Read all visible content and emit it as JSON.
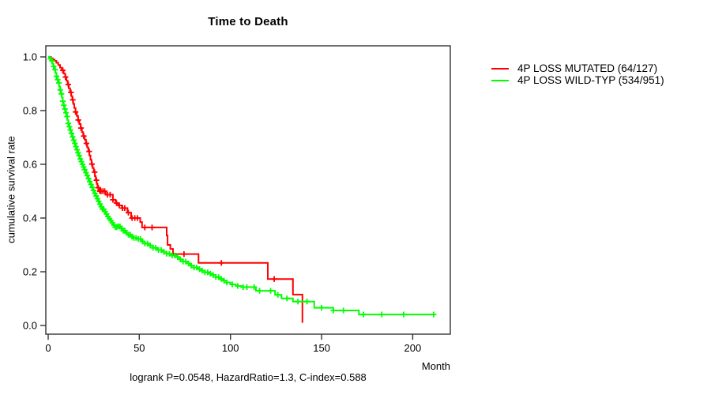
{
  "chart_data": {
    "type": "line",
    "subtype": "kaplan-meier-step-survival",
    "title": "Time to Death",
    "xlabel": "Month",
    "ylabel": "cumulative survival rate",
    "footer": "logrank P=0.0548, HazardRatio=1.3, C-index=0.588",
    "x_ticks": [
      0,
      50,
      100,
      150,
      200
    ],
    "y_tick_labels": [
      "0.0",
      "0.2",
      "0.4",
      "0.6",
      "0.8",
      "1.0"
    ],
    "xlim": [
      0,
      220
    ],
    "ylim": [
      0,
      1.0
    ],
    "grid": false,
    "legend_position": "right-outside",
    "axis_color": "#333333",
    "series": [
      {
        "key": "mutated",
        "name": "4P LOSS MUTATED",
        "label": "4P LOSS MUTATED (64/127)",
        "events": 64,
        "n": 127,
        "color": "#ff0000",
        "steps": [
          [
            0,
            1.0
          ],
          [
            1.5,
            0.995
          ],
          [
            2.5,
            0.99
          ],
          [
            3.5,
            0.985
          ],
          [
            4.5,
            0.978
          ],
          [
            5.5,
            0.97
          ],
          [
            6.5,
            0.96
          ],
          [
            7.5,
            0.95
          ],
          [
            8.5,
            0.938
          ],
          [
            9.3,
            0.925
          ],
          [
            10,
            0.911
          ],
          [
            10.7,
            0.897
          ],
          [
            11.3,
            0.883
          ],
          [
            12,
            0.868
          ],
          [
            12.6,
            0.854
          ],
          [
            13.2,
            0.84
          ],
          [
            13.7,
            0.825
          ],
          [
            14.3,
            0.81
          ],
          [
            15,
            0.795
          ],
          [
            15.7,
            0.78
          ],
          [
            16.4,
            0.765
          ],
          [
            17.1,
            0.75
          ],
          [
            17.8,
            0.735
          ],
          [
            18.5,
            0.72
          ],
          [
            19.2,
            0.705
          ],
          [
            20,
            0.692
          ],
          [
            20.7,
            0.678
          ],
          [
            21.4,
            0.663
          ],
          [
            22,
            0.648
          ],
          [
            22.6,
            0.633
          ],
          [
            23.2,
            0.617
          ],
          [
            23.8,
            0.601
          ],
          [
            24.4,
            0.586
          ],
          [
            25,
            0.571
          ],
          [
            25.6,
            0.556
          ],
          [
            26.1,
            0.541
          ],
          [
            26.6,
            0.527
          ],
          [
            27.1,
            0.513
          ],
          [
            27.6,
            0.5
          ],
          [
            31.5,
            0.487
          ],
          [
            35.5,
            0.468
          ],
          [
            37,
            0.456
          ],
          [
            38.5,
            0.447
          ],
          [
            40.5,
            0.437
          ],
          [
            43.5,
            0.42
          ],
          [
            45.5,
            0.4
          ],
          [
            50.5,
            0.385
          ],
          [
            51.5,
            0.365
          ],
          [
            65,
            0.335
          ],
          [
            65.5,
            0.3
          ],
          [
            67,
            0.285
          ],
          [
            68.5,
            0.266
          ],
          [
            82.5,
            0.233
          ],
          [
            120.5,
            0.173
          ],
          [
            134.3,
            0.115
          ],
          [
            139.5,
            0.01
          ]
        ],
        "censor_times": [
          8,
          9.5,
          11,
          12.5,
          13.5,
          15,
          16.5,
          18,
          19.5,
          21,
          22.5,
          24,
          25.5,
          26.5,
          27.5,
          28.3,
          29,
          30,
          31,
          32.5,
          34,
          35.5,
          37.5,
          39,
          40.8,
          42,
          44,
          46,
          47.5,
          49,
          53,
          57,
          74.5,
          95,
          124
        ]
      },
      {
        "key": "wildtype",
        "name": "4P LOSS WILD-TYP",
        "label": "4P LOSS WILD-TYP (534/951)",
        "events": 534,
        "n": 951,
        "color": "#00ff00",
        "steps": [
          [
            0,
            1.0
          ],
          [
            0.8,
            0.993
          ],
          [
            1.5,
            0.985
          ],
          [
            2.2,
            0.975
          ],
          [
            2.8,
            0.965
          ],
          [
            3.4,
            0.952
          ],
          [
            4,
            0.94
          ],
          [
            4.5,
            0.928
          ],
          [
            5,
            0.915
          ],
          [
            5.5,
            0.903
          ],
          [
            6,
            0.89
          ],
          [
            6.5,
            0.877
          ],
          [
            7,
            0.862
          ],
          [
            7.5,
            0.848
          ],
          [
            8,
            0.835
          ],
          [
            8.5,
            0.82
          ],
          [
            9,
            0.806
          ],
          [
            9.5,
            0.792
          ],
          [
            10,
            0.778
          ],
          [
            10.5,
            0.765
          ],
          [
            11,
            0.752
          ],
          [
            11.6,
            0.74
          ],
          [
            12.2,
            0.728
          ],
          [
            12.8,
            0.715
          ],
          [
            13.4,
            0.702
          ],
          [
            14,
            0.69
          ],
          [
            14.6,
            0.678
          ],
          [
            15.2,
            0.666
          ],
          [
            15.8,
            0.654
          ],
          [
            16.4,
            0.643
          ],
          [
            17,
            0.632
          ],
          [
            17.6,
            0.62
          ],
          [
            18.2,
            0.61
          ],
          [
            18.8,
            0.6
          ],
          [
            19.4,
            0.59
          ],
          [
            20,
            0.58
          ],
          [
            20.7,
            0.569
          ],
          [
            21.4,
            0.558
          ],
          [
            22.1,
            0.547
          ],
          [
            22.8,
            0.536
          ],
          [
            23.5,
            0.525
          ],
          [
            24.2,
            0.514
          ],
          [
            24.9,
            0.503
          ],
          [
            25.6,
            0.492
          ],
          [
            26.3,
            0.482
          ],
          [
            27,
            0.472
          ],
          [
            27.7,
            0.462
          ],
          [
            28.4,
            0.452
          ],
          [
            29.1,
            0.442
          ],
          [
            29.8,
            0.433
          ],
          [
            30.6,
            0.424
          ],
          [
            31.4,
            0.415
          ],
          [
            32.2,
            0.406
          ],
          [
            33,
            0.398
          ],
          [
            33.8,
            0.39
          ],
          [
            34.8,
            0.382
          ],
          [
            35.8,
            0.374
          ],
          [
            36.8,
            0.366
          ],
          [
            38,
            0.378
          ],
          [
            38,
            0.369
          ],
          [
            39.5,
            0.361
          ],
          [
            41,
            0.353
          ],
          [
            42.5,
            0.345
          ],
          [
            44,
            0.338
          ],
          [
            45.5,
            0.331
          ],
          [
            47,
            0.326
          ],
          [
            49,
            0.322
          ],
          [
            51,
            0.313
          ],
          [
            53,
            0.305
          ],
          [
            55,
            0.298
          ],
          [
            57.5,
            0.289
          ],
          [
            60,
            0.281
          ],
          [
            62.5,
            0.274
          ],
          [
            65,
            0.267
          ],
          [
            67.5,
            0.261
          ],
          [
            70,
            0.255
          ],
          [
            72,
            0.246
          ],
          [
            74,
            0.238
          ],
          [
            76,
            0.231
          ],
          [
            78,
            0.223
          ],
          [
            80,
            0.216
          ],
          [
            82,
            0.21
          ],
          [
            84,
            0.204
          ],
          [
            86,
            0.198
          ],
          [
            88,
            0.193
          ],
          [
            90,
            0.188
          ],
          [
            92,
            0.18
          ],
          [
            94,
            0.173
          ],
          [
            96,
            0.167
          ],
          [
            98,
            0.16
          ],
          [
            100,
            0.153
          ],
          [
            103,
            0.147
          ],
          [
            106,
            0.143
          ],
          [
            114,
            0.129
          ],
          [
            124.5,
            0.114
          ],
          [
            128,
            0.101
          ],
          [
            134.3,
            0.089
          ],
          [
            146,
            0.066
          ],
          [
            156.5,
            0.056
          ],
          [
            170.5,
            0.041
          ],
          [
            212,
            0.041
          ]
        ],
        "censor_times": [
          1.2,
          2.1,
          3,
          3.8,
          4.5,
          5.2,
          5.9,
          6.6,
          7.3,
          8,
          8.6,
          9.2,
          9.8,
          10.4,
          11,
          11.6,
          12.2,
          12.8,
          13.4,
          14,
          14.6,
          15.2,
          15.8,
          16.4,
          17,
          17.6,
          18.2,
          18.8,
          19.4,
          20,
          20.7,
          21.4,
          22.1,
          22.8,
          23.5,
          24.2,
          24.9,
          25.6,
          26.3,
          27,
          27.7,
          28.4,
          29.1,
          29.8,
          30.5,
          31.2,
          32,
          32.8,
          33.6,
          34.4,
          35.2,
          36,
          36.8,
          37.6,
          38.5,
          39.4,
          40.3,
          41.2,
          42.1,
          43,
          44,
          45,
          46,
          47,
          48.2,
          49.4,
          50.6,
          51.8,
          53,
          54.5,
          56,
          57.5,
          59,
          60.5,
          62,
          63.5,
          65,
          66.5,
          68,
          69.5,
          71,
          72.5,
          74,
          75.5,
          77,
          78.5,
          80,
          81.5,
          83,
          84.5,
          86,
          87.5,
          89,
          90.5,
          92,
          93.5,
          95,
          96.5,
          98,
          101,
          104,
          107,
          109,
          113,
          116,
          122,
          126,
          131,
          137,
          142,
          150,
          156.5,
          162,
          173,
          183,
          195,
          211.5
        ]
      }
    ]
  }
}
